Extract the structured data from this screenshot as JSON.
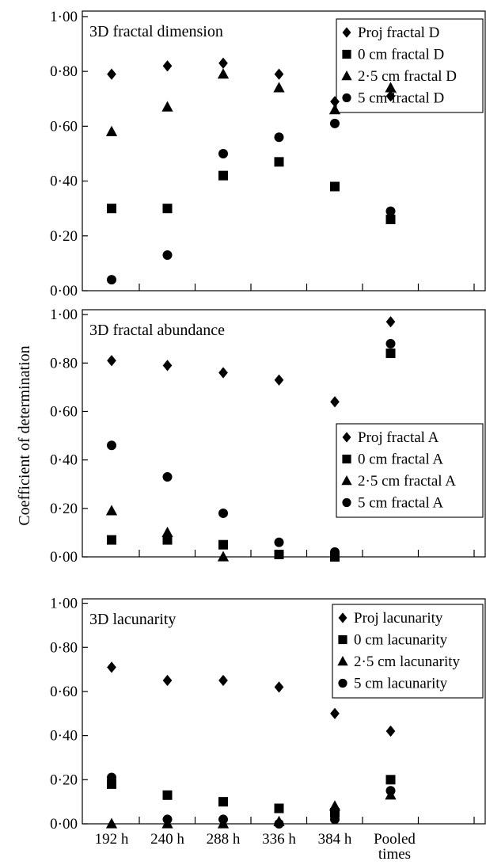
{
  "chart_data": {
    "type": "scatter",
    "ylabel": "Coefficient of determination",
    "xlabel": "",
    "categories": [
      "192 h",
      "240 h",
      "288 h",
      "336 h",
      "384 h",
      "Pooled times"
    ],
    "category_label_lines": [
      [
        "192 h"
      ],
      [
        "240 h"
      ],
      [
        "288 h"
      ],
      [
        "336 h"
      ],
      [
        "384 h"
      ],
      [
        "Pooled",
        "times"
      ]
    ],
    "ytick_labels": [
      "0·00",
      "0·20",
      "0·40",
      "0·60",
      "0·80",
      "1·00"
    ],
    "ytick_values": [
      0,
      0.2,
      0.4,
      0.6,
      0.8,
      1.0
    ],
    "ylim": [
      0,
      1.02
    ],
    "grid": false,
    "panels": [
      {
        "title": "3D fractal dimension",
        "legend_position": "top-right",
        "series": [
          {
            "name": "Proj fractal D",
            "marker": "diamond",
            "values": [
              0.79,
              0.82,
              0.83,
              0.79,
              0.69,
              0.71
            ]
          },
          {
            "name": "0 cm fractal D",
            "marker": "square",
            "values": [
              0.3,
              0.3,
              0.42,
              0.47,
              0.38,
              0.26
            ]
          },
          {
            "name": "2·5 cm fractal D",
            "marker": "triangle",
            "values": [
              0.58,
              0.67,
              0.79,
              0.74,
              0.66,
              0.74
            ]
          },
          {
            "name": "5 cm fractal D",
            "marker": "circle",
            "values": [
              0.04,
              0.13,
              0.5,
              0.56,
              0.61,
              0.29
            ]
          }
        ]
      },
      {
        "title": "3D fractal abundance",
        "legend_position": "right",
        "series": [
          {
            "name": "Proj fractal A",
            "marker": "diamond",
            "values": [
              0.81,
              0.79,
              0.76,
              0.73,
              0.64,
              0.97
            ]
          },
          {
            "name": "0 cm fractal A",
            "marker": "square",
            "values": [
              0.07,
              0.07,
              0.05,
              0.01,
              0.0,
              0.84
            ]
          },
          {
            "name": "2·5 cm fractal A",
            "marker": "triangle",
            "values": [
              0.19,
              0.1,
              0.0,
              null,
              null,
              null
            ]
          },
          {
            "name": "5 cm fractal A",
            "marker": "circle",
            "values": [
              0.46,
              0.33,
              0.18,
              0.06,
              0.02,
              0.88
            ]
          }
        ]
      },
      {
        "title": "3D lacunarity",
        "legend_position": "top-right",
        "series": [
          {
            "name": "Proj lacunarity",
            "marker": "diamond",
            "values": [
              0.71,
              0.65,
              0.65,
              0.62,
              0.5,
              0.42
            ]
          },
          {
            "name": "0 cm lacunarity",
            "marker": "square",
            "values": [
              0.18,
              0.13,
              0.1,
              0.07,
              0.05,
              0.2
            ]
          },
          {
            "name": "2·5 cm lacunarity",
            "marker": "triangle",
            "values": [
              0.0,
              0.0,
              0.0,
              0.01,
              0.08,
              0.13
            ]
          },
          {
            "name": "5 cm lacunarity",
            "marker": "circle",
            "values": [
              0.21,
              0.02,
              0.02,
              0.0,
              0.02,
              0.15
            ]
          }
        ]
      }
    ]
  }
}
